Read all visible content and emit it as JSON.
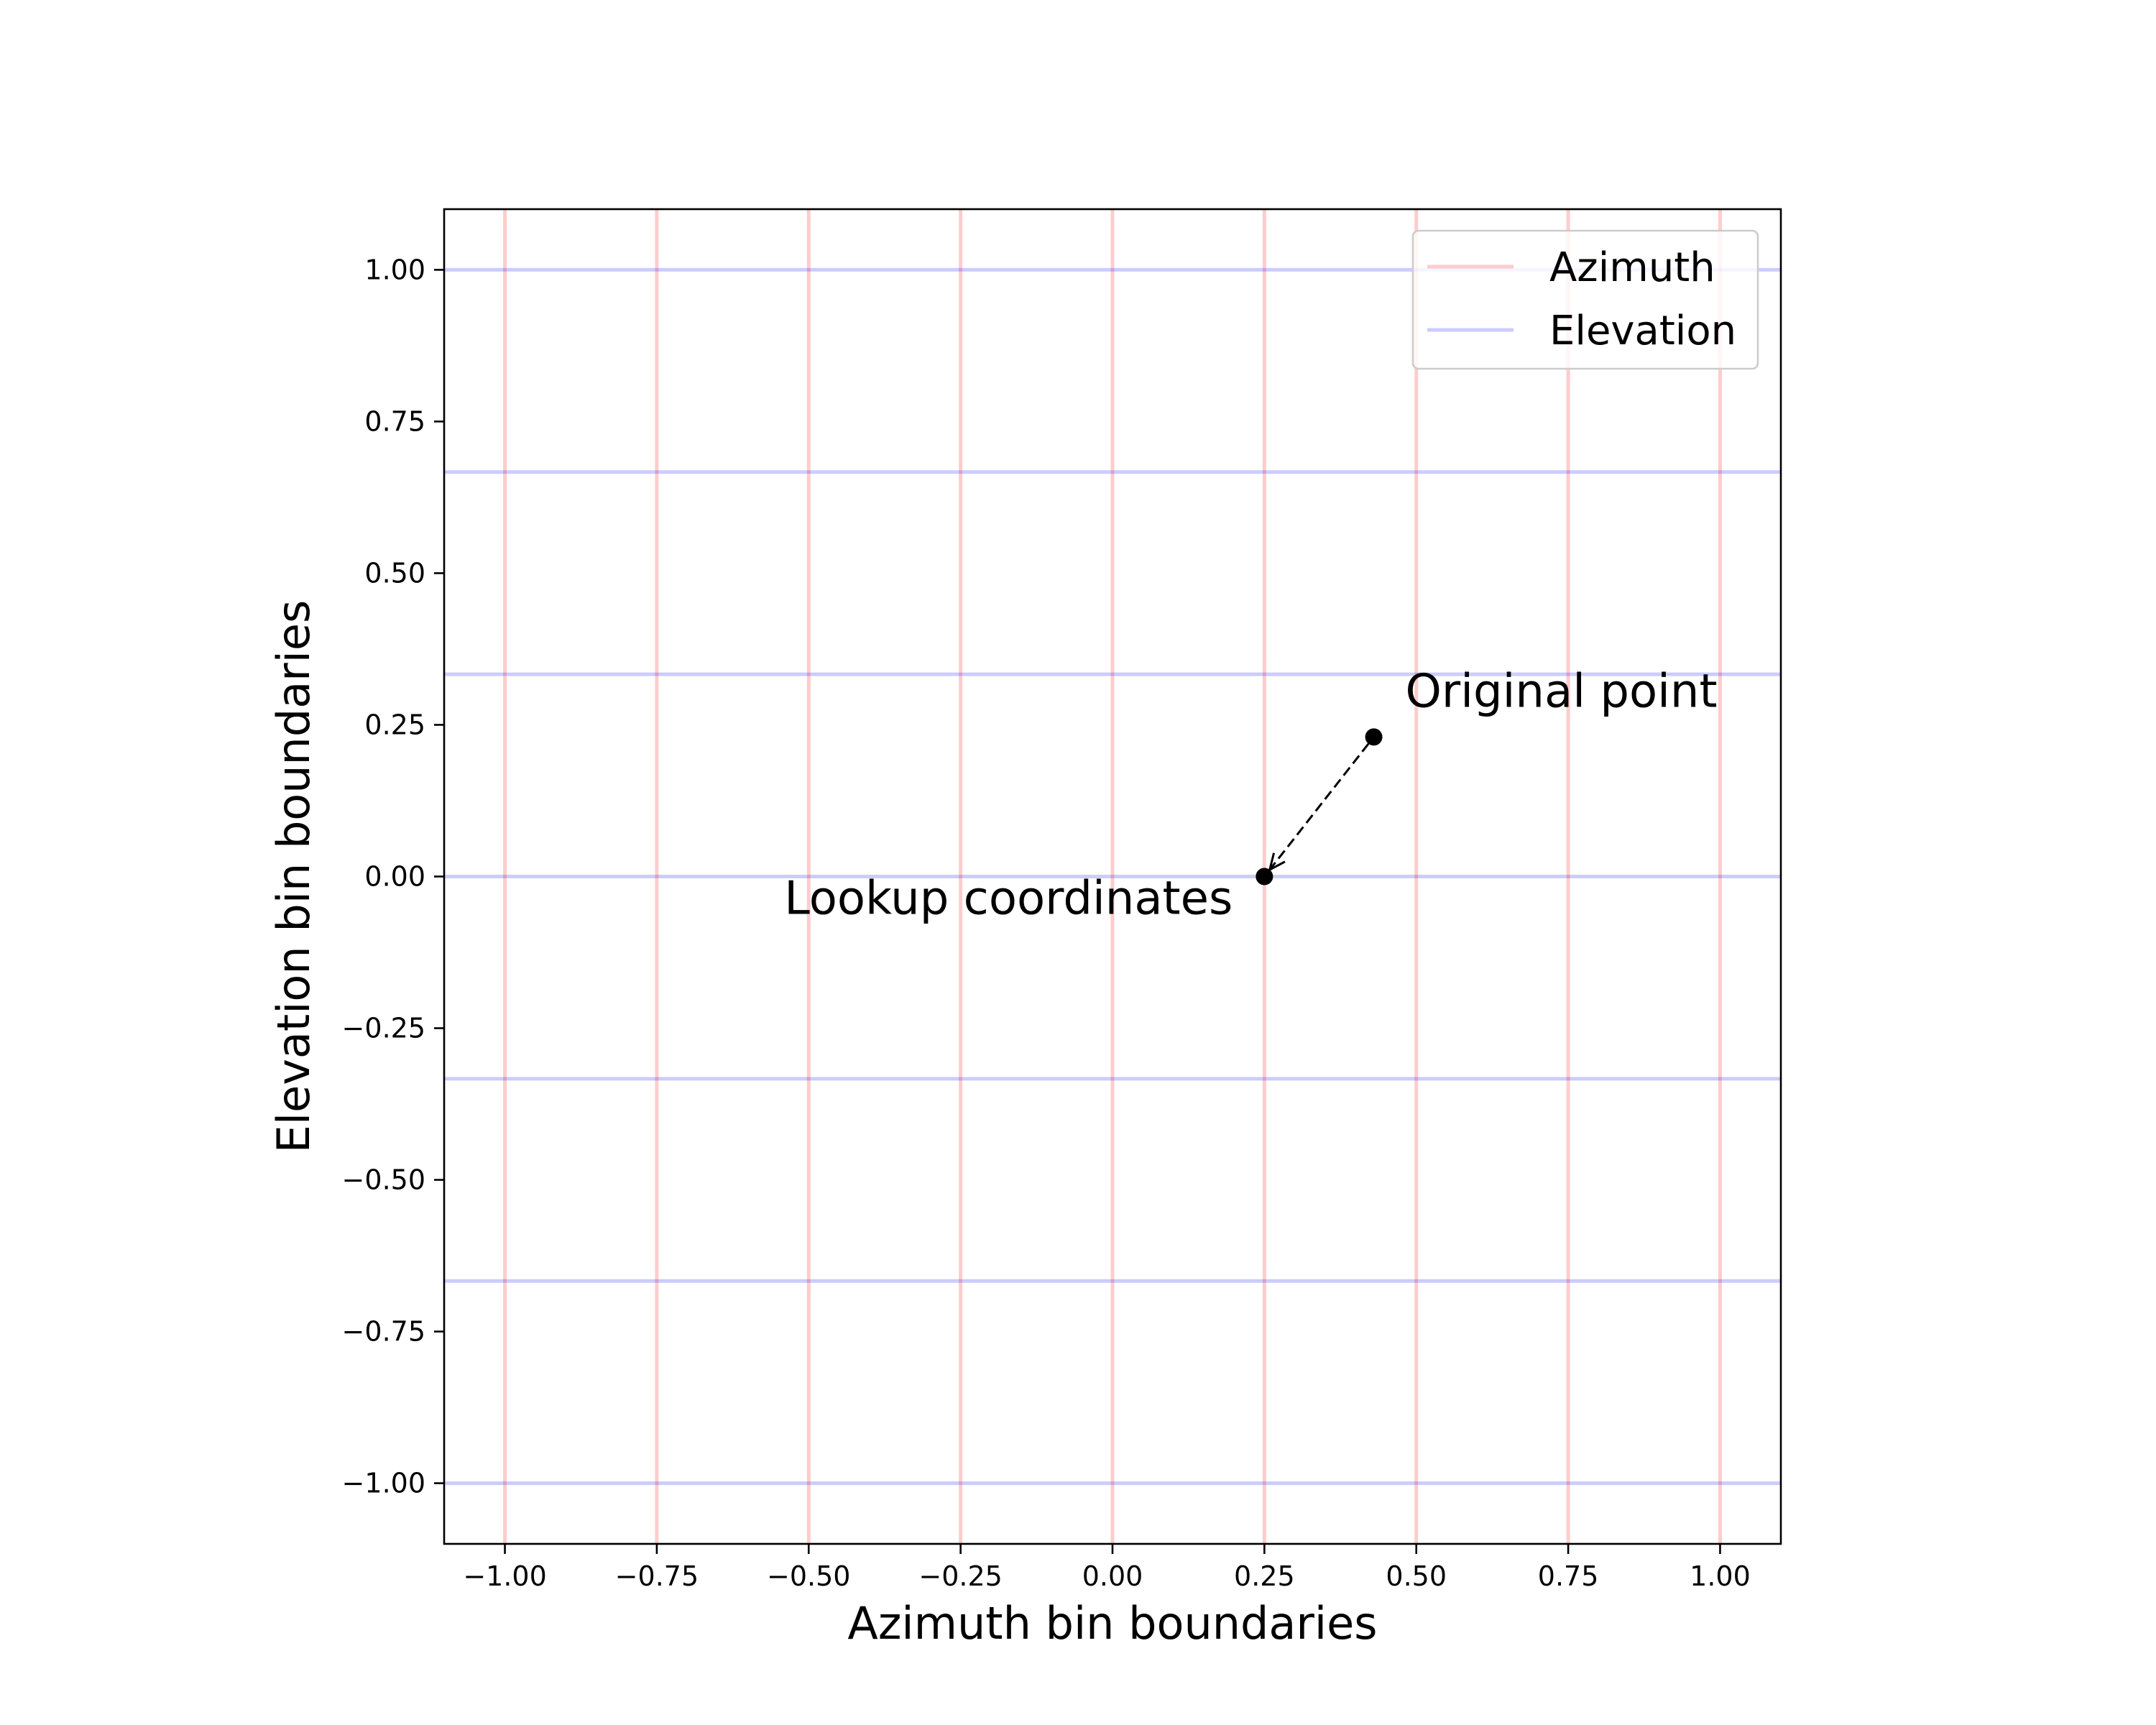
{
  "chart_data": {
    "type": "line",
    "title": "",
    "xlabel": "Azimuth bin boundaries",
    "ylabel": "Elevation bin boundaries",
    "xlim": [
      -1.1,
      1.1
    ],
    "ylim": [
      -1.1,
      1.1
    ],
    "xticks": [
      -1.0,
      -0.75,
      -0.5,
      -0.25,
      0.0,
      0.25,
      0.5,
      0.75,
      1.0
    ],
    "xtick_labels": [
      "−1.00",
      "−0.75",
      "−0.50",
      "−0.25",
      "0.00",
      "0.25",
      "0.50",
      "0.75",
      "1.00"
    ],
    "yticks": [
      -1.0,
      -0.75,
      -0.5,
      -0.25,
      0.0,
      0.25,
      0.5,
      0.75,
      1.0
    ],
    "ytick_labels": [
      "−1.00",
      "−0.75",
      "−0.50",
      "−0.25",
      "0.00",
      "0.25",
      "0.50",
      "0.75",
      "1.00"
    ],
    "grid": false,
    "legend_position": "top-right",
    "series": [
      {
        "name": "Azimuth",
        "orientation": "vertical",
        "color": "#ff0000",
        "alpha": 0.2,
        "values": [
          -1.0,
          -0.75,
          -0.5,
          -0.25,
          0.0,
          0.25,
          0.5,
          0.75,
          1.0
        ]
      },
      {
        "name": "Elevation",
        "orientation": "horizontal",
        "color": "#0000ff",
        "alpha": 0.2,
        "values": [
          -1.0,
          -0.6667,
          -0.3333,
          0.0,
          0.3333,
          0.6667,
          1.0
        ]
      }
    ],
    "points": [
      {
        "label": "Original point",
        "x": 0.43,
        "y": 0.23
      },
      {
        "label": "Lookup coordinates",
        "x": 0.25,
        "y": 0.0
      }
    ],
    "arrow": {
      "from": "Original point",
      "to": "Lookup coordinates",
      "style": "dashed"
    }
  }
}
